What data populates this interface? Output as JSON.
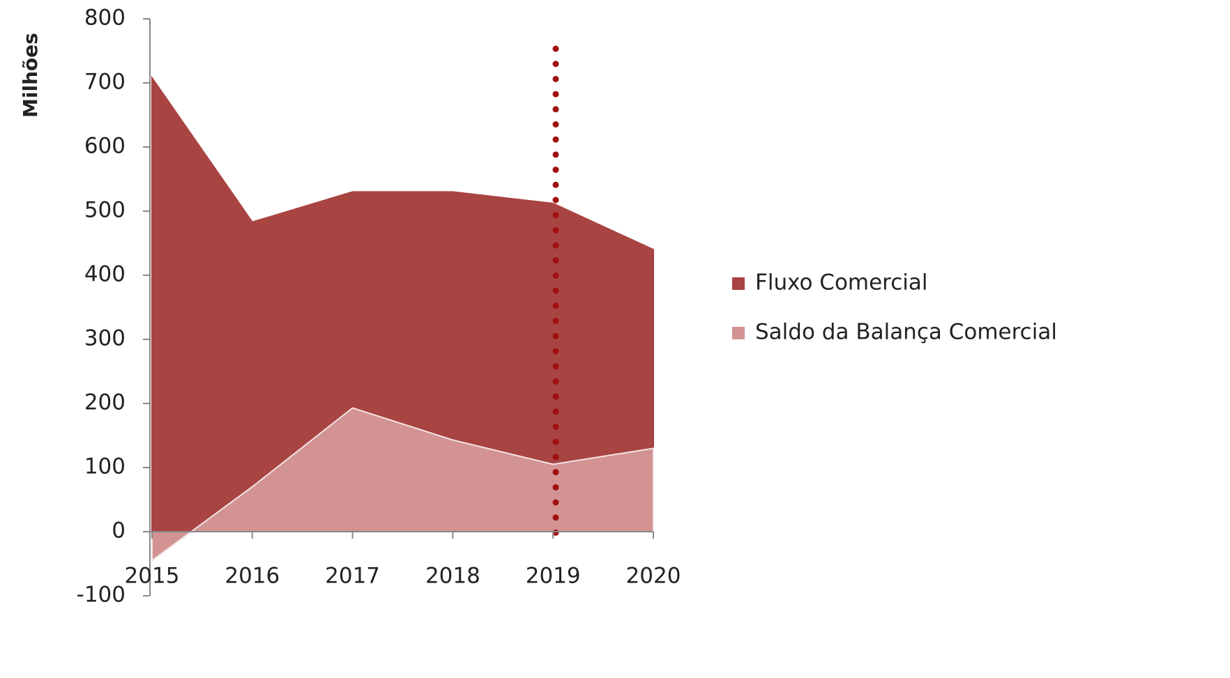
{
  "chart_data": {
    "type": "area",
    "y_label": "Milhões",
    "categories": [
      "2015",
      "2016",
      "2017",
      "2018",
      "2019",
      "2020"
    ],
    "series": [
      {
        "name": "Fluxo Comercial",
        "color": "#a84442",
        "values": [
          708,
          483,
          530,
          530,
          512,
          440
        ]
      },
      {
        "name": "Saldo da Balança Comercial",
        "color": "#d39393",
        "values": [
          -45,
          70,
          193,
          143,
          105,
          130
        ]
      }
    ],
    "ylim": [
      -100,
      800
    ],
    "yticks": [
      -100,
      0,
      100,
      200,
      300,
      400,
      500,
      600,
      700,
      800
    ],
    "legend": "right"
  }
}
